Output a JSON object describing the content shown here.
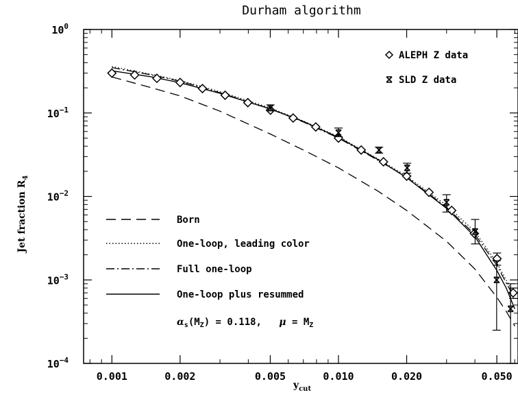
{
  "chart_data": {
    "type": "line",
    "title": "Durham algorithm",
    "xlabel": "y",
    "xlabel_sub": "cut",
    "ylabel": "Jet fraction R",
    "ylabel_sub": "4",
    "x_scale": "log",
    "y_scale": "log",
    "xlim": [
      0.00075,
      0.062
    ],
    "ylim": [
      0.0001,
      1
    ],
    "x_ticks": [
      {
        "value": 0.001,
        "label": "0.001"
      },
      {
        "value": 0.002,
        "label": "0.002"
      },
      {
        "value": 0.005,
        "label": "0.005"
      },
      {
        "value": 0.01,
        "label": "0.010"
      },
      {
        "value": 0.02,
        "label": "0.020"
      },
      {
        "value": 0.05,
        "label": "0.050"
      }
    ],
    "y_ticks": [
      {
        "value": 1,
        "base": "10",
        "exp": "0"
      },
      {
        "value": 0.1,
        "base": "10",
        "exp": "−1"
      },
      {
        "value": 0.01,
        "base": "10",
        "exp": "−2"
      },
      {
        "value": 0.001,
        "base": "10",
        "exp": "−3"
      },
      {
        "value": 0.0001,
        "base": "10",
        "exp": "−4"
      }
    ],
    "legend_position": "bottom-left",
    "annotation": {
      "lhs": "α",
      "lhs_sub": "s",
      "arg": "(M",
      "arg_sub": "Z",
      "mid": ") = 0.118,   ",
      "mu": "μ",
      "rhs": " = M",
      "rhs_sub": "Z"
    },
    "series": [
      {
        "name": "Born",
        "style": "dashed",
        "x": [
          0.001,
          0.0015,
          0.002,
          0.003,
          0.005,
          0.007,
          0.01,
          0.015,
          0.02,
          0.03,
          0.04,
          0.05,
          0.055,
          0.06
        ],
        "y": [
          0.27,
          0.2,
          0.16,
          0.105,
          0.056,
          0.036,
          0.022,
          0.0115,
          0.0068,
          0.0029,
          0.00135,
          0.00062,
          0.00042,
          0.00028
        ]
      },
      {
        "name": "One-loop, leading color",
        "style": "dotted",
        "x": [
          0.001,
          0.0015,
          0.002,
          0.003,
          0.005,
          0.007,
          0.01,
          0.015,
          0.02,
          0.03,
          0.04,
          0.05,
          0.055,
          0.06
        ],
        "y": [
          0.36,
          0.29,
          0.245,
          0.18,
          0.115,
          0.08,
          0.052,
          0.028,
          0.0175,
          0.0078,
          0.0038,
          0.0016,
          0.001,
          0.00065
        ]
      },
      {
        "name": "Full one-loop",
        "style": "dashdot",
        "x": [
          0.001,
          0.0015,
          0.002,
          0.003,
          0.005,
          0.007,
          0.01,
          0.015,
          0.02,
          0.03,
          0.04,
          0.05,
          0.055,
          0.06
        ],
        "y": [
          0.35,
          0.285,
          0.24,
          0.175,
          0.112,
          0.078,
          0.05,
          0.027,
          0.017,
          0.0074,
          0.0035,
          0.0015,
          0.00092,
          0.0006
        ]
      },
      {
        "name": "One-loop plus resummed",
        "style": "solid",
        "x": [
          0.001,
          0.0015,
          0.002,
          0.003,
          0.005,
          0.007,
          0.01,
          0.015,
          0.02,
          0.03,
          0.04,
          0.05,
          0.055,
          0.06
        ],
        "y": [
          0.32,
          0.27,
          0.23,
          0.172,
          0.112,
          0.079,
          0.051,
          0.0275,
          0.0168,
          0.0072,
          0.0033,
          0.0013,
          0.0008,
          0.00045
        ]
      }
    ],
    "data_sets": [
      {
        "name": "ALEPH Z data",
        "marker": "diamond",
        "points": [
          {
            "x": 0.001,
            "y": 0.3,
            "lo": 0.3,
            "hi": 0.3
          },
          {
            "x": 0.00126,
            "y": 0.285,
            "lo": 0.285,
            "hi": 0.285
          },
          {
            "x": 0.00158,
            "y": 0.26,
            "lo": 0.26,
            "hi": 0.26
          },
          {
            "x": 0.002,
            "y": 0.232,
            "lo": 0.232,
            "hi": 0.232
          },
          {
            "x": 0.00251,
            "y": 0.196,
            "lo": 0.196,
            "hi": 0.196
          },
          {
            "x": 0.00316,
            "y": 0.163,
            "lo": 0.163,
            "hi": 0.163
          },
          {
            "x": 0.00398,
            "y": 0.133,
            "lo": 0.133,
            "hi": 0.133
          },
          {
            "x": 0.00501,
            "y": 0.108,
            "lo": 0.108,
            "hi": 0.108
          },
          {
            "x": 0.00631,
            "y": 0.087,
            "lo": 0.087,
            "hi": 0.087
          },
          {
            "x": 0.00794,
            "y": 0.068,
            "lo": 0.068,
            "hi": 0.068
          },
          {
            "x": 0.01,
            "y": 0.05,
            "lo": 0.05,
            "hi": 0.05
          },
          {
            "x": 0.0126,
            "y": 0.036,
            "lo": 0.036,
            "hi": 0.036
          },
          {
            "x": 0.0158,
            "y": 0.026,
            "lo": 0.026,
            "hi": 0.026
          },
          {
            "x": 0.02,
            "y": 0.0175,
            "lo": 0.0175,
            "hi": 0.0175
          },
          {
            "x": 0.0251,
            "y": 0.0112,
            "lo": 0.0112,
            "hi": 0.0112
          },
          {
            "x": 0.0316,
            "y": 0.0068,
            "lo": 0.0068,
            "hi": 0.0068
          },
          {
            "x": 0.0398,
            "y": 0.0036,
            "lo": 0.0036,
            "hi": 0.0036
          },
          {
            "x": 0.0501,
            "y": 0.0018,
            "lo": 0.0015,
            "hi": 0.0021
          },
          {
            "x": 0.059,
            "y": 0.0007,
            "lo": 0.0006,
            "hi": 0.0008
          }
        ]
      },
      {
        "name": "SLD Z data",
        "marker": "star",
        "points": [
          {
            "x": 0.00501,
            "y": 0.115,
            "lo": 0.106,
            "hi": 0.125
          },
          {
            "x": 0.01,
            "y": 0.058,
            "lo": 0.052,
            "hi": 0.066
          },
          {
            "x": 0.0151,
            "y": 0.036,
            "lo": 0.033,
            "hi": 0.039
          },
          {
            "x": 0.0201,
            "y": 0.022,
            "lo": 0.019,
            "hi": 0.025
          },
          {
            "x": 0.03,
            "y": 0.0085,
            "lo": 0.0065,
            "hi": 0.0105
          },
          {
            "x": 0.0401,
            "y": 0.0038,
            "lo": 0.0027,
            "hi": 0.0053
          },
          {
            "x": 0.0499,
            "y": 0.001,
            "lo": 0.00025,
            "hi": 0.0017
          },
          {
            "x": 0.0575,
            "y": 0.00045,
            "lo": 0.0001,
            "hi": 0.0009
          }
        ]
      }
    ]
  }
}
